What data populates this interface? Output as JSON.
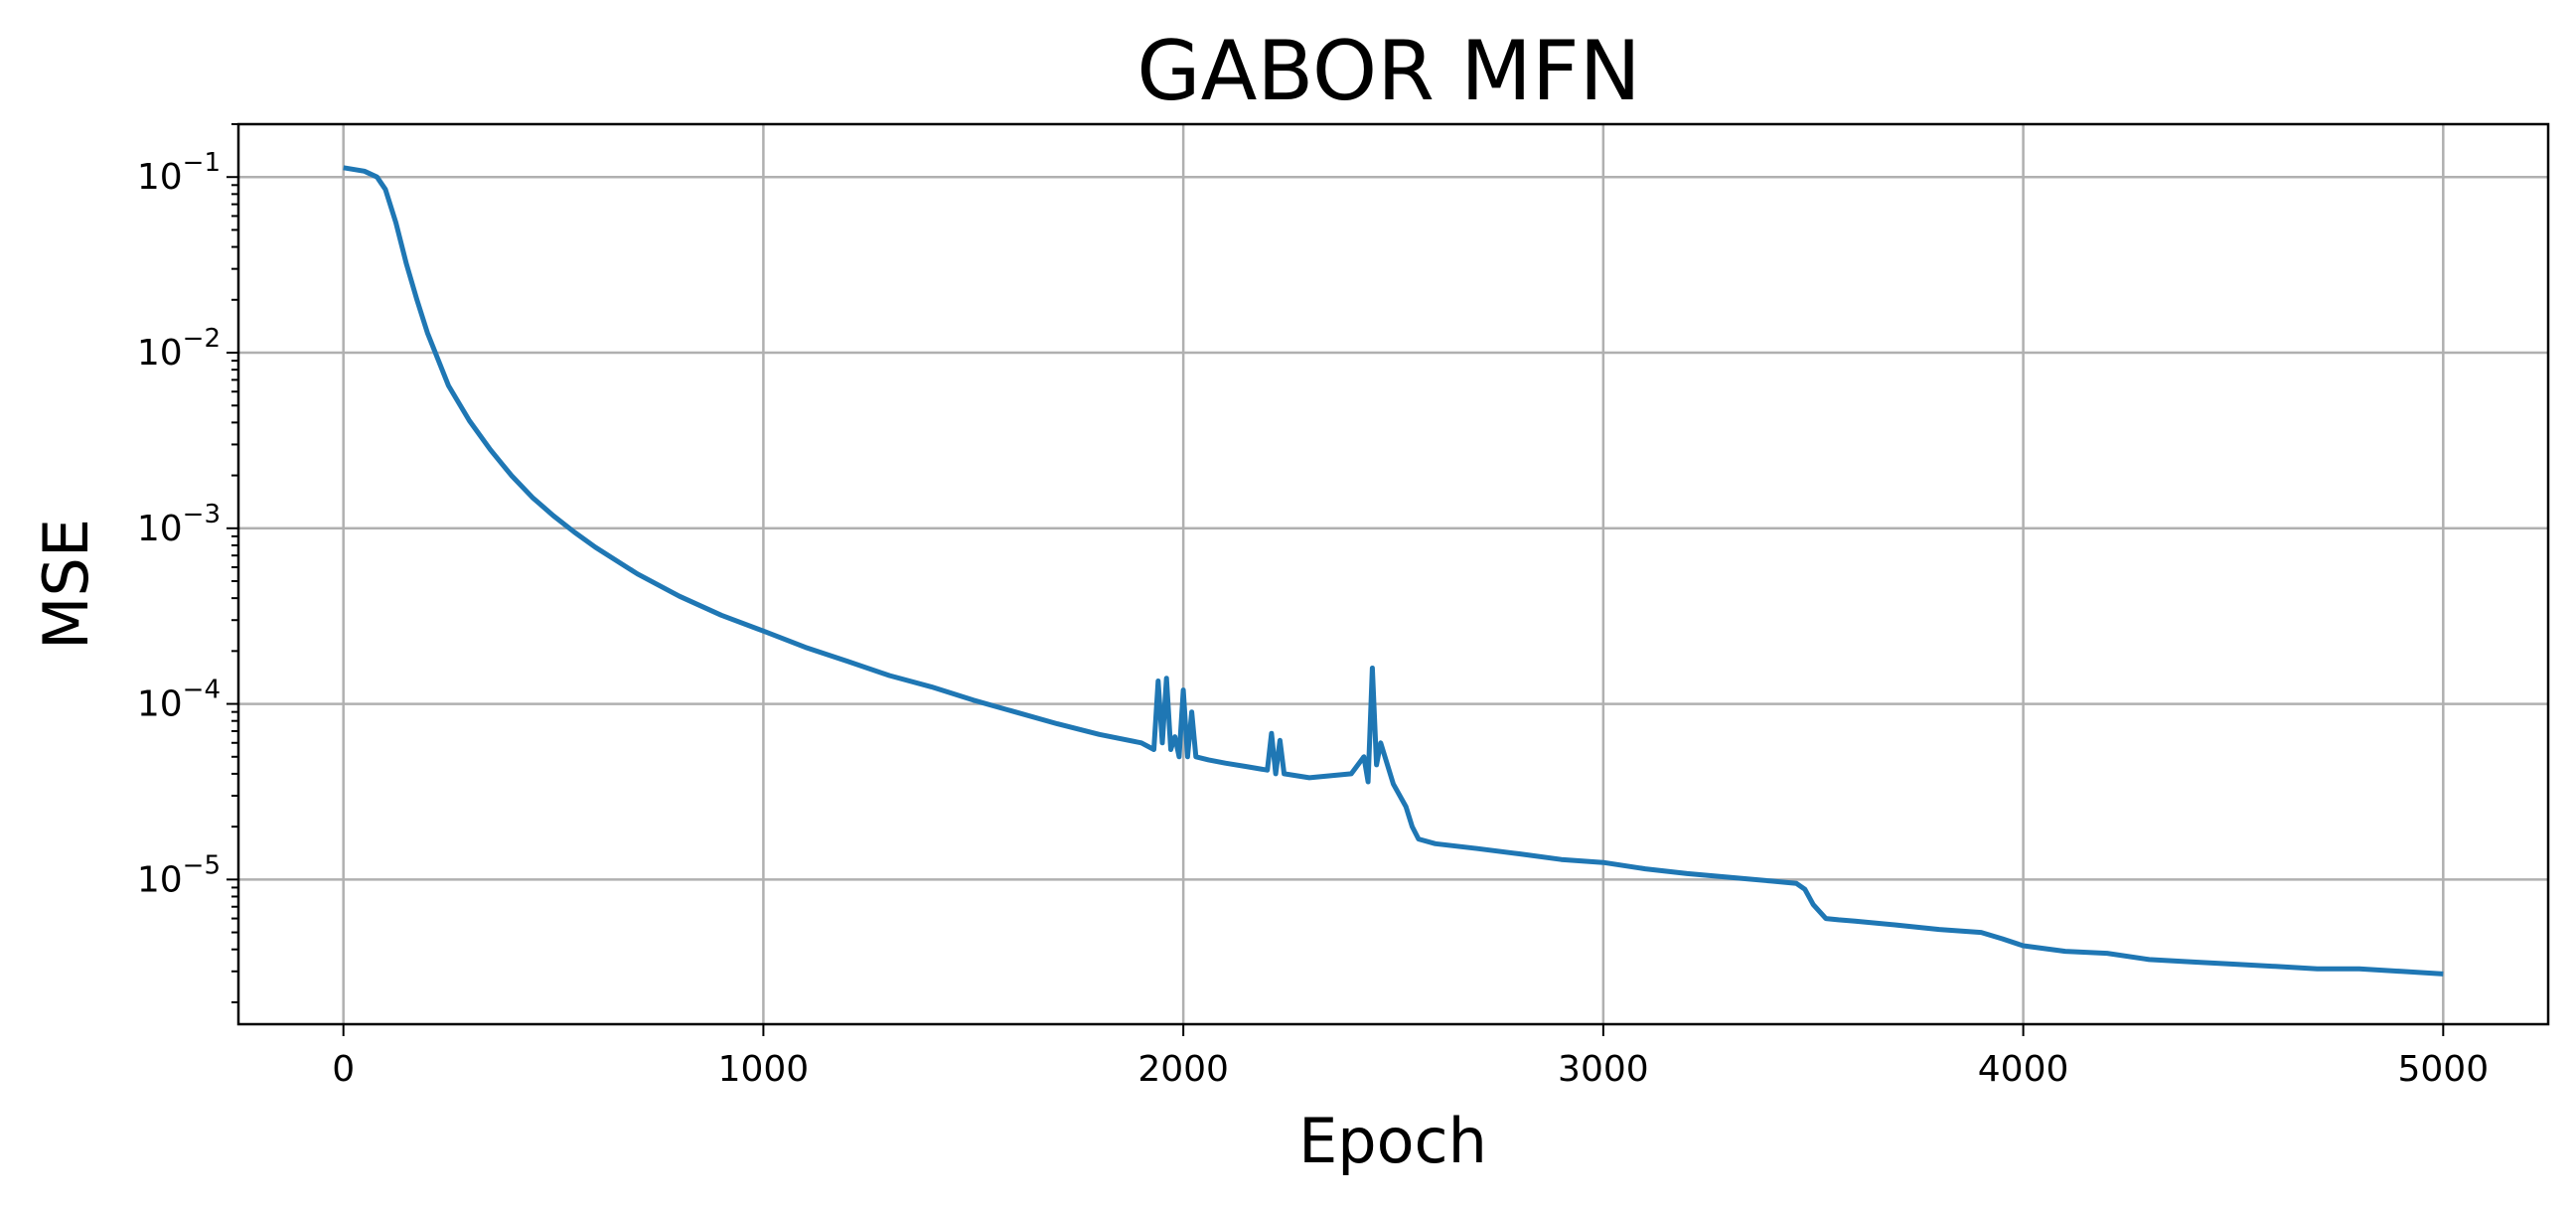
{
  "chart_data": {
    "type": "line",
    "title": "GABOR MFN",
    "xlabel": "Epoch",
    "ylabel": "MSE",
    "xlim": [
      -250,
      5250
    ],
    "ylim": [
      1.5e-06,
      0.2
    ],
    "yscale": "log",
    "grid": true,
    "xticks": [
      0,
      1000,
      2000,
      3000,
      4000,
      5000
    ],
    "xtick_labels": [
      "0",
      "1000",
      "2000",
      "3000",
      "4000",
      "5000"
    ],
    "yticks": [
      {
        "value": 0.1,
        "base": "10",
        "exp": "−1"
      },
      {
        "value": 0.01,
        "base": "10",
        "exp": "−2"
      },
      {
        "value": 0.001,
        "base": "10",
        "exp": "−3"
      },
      {
        "value": 0.0001,
        "base": "10",
        "exp": "−4"
      },
      {
        "value": 1e-05,
        "base": "10",
        "exp": "−5"
      }
    ],
    "series_color": "#1f77b4",
    "series": [
      {
        "x": [
          0,
          50,
          80,
          100,
          125,
          150,
          175,
          200,
          250,
          300,
          350,
          400,
          450,
          500,
          550,
          600,
          700,
          800,
          900,
          1000,
          1100,
          1200,
          1300,
          1400,
          1500,
          1600,
          1700,
          1800,
          1900,
          1930,
          1940,
          1950,
          1960,
          1970,
          1980,
          1990,
          2000,
          2010,
          2020,
          2030,
          2060,
          2100,
          2150,
          2200,
          2210,
          2220,
          2230,
          2240,
          2300,
          2350,
          2400,
          2430,
          2440,
          2450,
          2460,
          2470,
          2500,
          2530,
          2545,
          2560,
          2600,
          2700,
          2800,
          2900,
          3000,
          3100,
          3200,
          3300,
          3400,
          3460,
          3480,
          3500,
          3530,
          3560,
          3600,
          3700,
          3800,
          3900,
          3950,
          4000,
          4100,
          4200,
          4300,
          4400,
          4500,
          4600,
          4700,
          4800,
          4900,
          5000
        ],
        "values": [
          0.113,
          0.108,
          0.1,
          0.085,
          0.055,
          0.032,
          0.02,
          0.013,
          0.0065,
          0.0041,
          0.0028,
          0.002,
          0.0015,
          0.00118,
          0.00095,
          0.00078,
          0.00055,
          0.00041,
          0.00032,
          0.00026,
          0.00021,
          0.000175,
          0.000145,
          0.000125,
          0.000105,
          9e-05,
          7.7e-05,
          6.7e-05,
          6e-05,
          5.5e-05,
          0.000135,
          6e-05,
          0.00014,
          5.5e-05,
          6.5e-05,
          5e-05,
          0.00012,
          5e-05,
          9e-05,
          5e-05,
          4.8e-05,
          4.6e-05,
          4.4e-05,
          4.2e-05,
          6.8e-05,
          4e-05,
          6.2e-05,
          4e-05,
          3.8e-05,
          3.9e-05,
          4e-05,
          5e-05,
          3.6e-05,
          0.00016,
          4.5e-05,
          6e-05,
          3.5e-05,
          2.6e-05,
          2e-05,
          1.7e-05,
          1.6e-05,
          1.5e-05,
          1.4e-05,
          1.3e-05,
          1.25e-05,
          1.15e-05,
          1.08e-05,
          1.03e-05,
          9.8e-06,
          9.5e-06,
          8.8e-06,
          7.2e-06,
          6e-06,
          5.9e-06,
          5.8e-06,
          5.5e-06,
          5.2e-06,
          5e-06,
          4.6e-06,
          4.2e-06,
          3.9e-06,
          3.8e-06,
          3.5e-06,
          3.4e-06,
          3.3e-06,
          3.2e-06,
          3.1e-06,
          3.1e-06,
          3e-06,
          2.9e-06
        ]
      }
    ]
  }
}
